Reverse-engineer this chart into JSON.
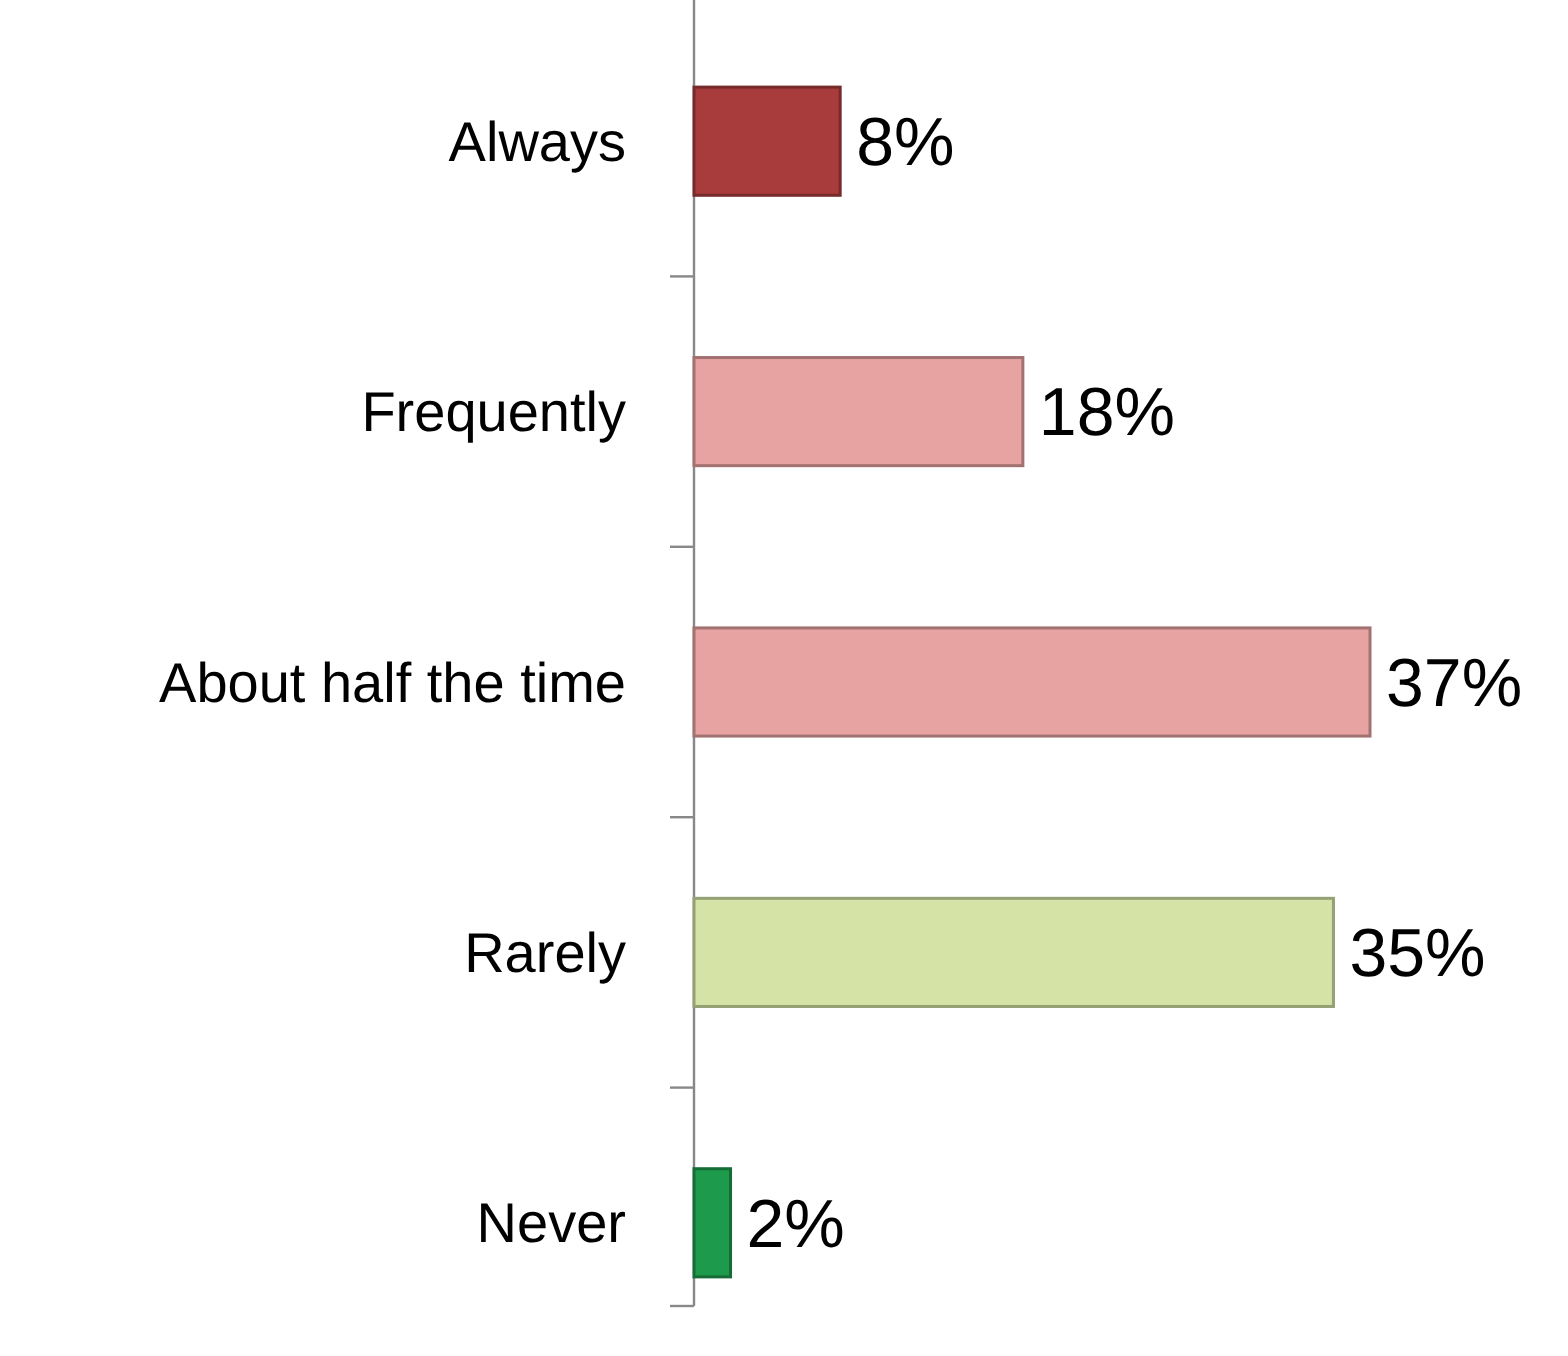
{
  "chart_data": {
    "type": "bar",
    "orientation": "horizontal",
    "categories": [
      "Always",
      "Frequently",
      "About half the time",
      "Rarely",
      "Never"
    ],
    "values": [
      8,
      18,
      37,
      35,
      2
    ],
    "colors": [
      "#a83c3c",
      "#e6a3a1",
      "#e6a3a1",
      "#d5e4a6",
      "#1e9a4c"
    ],
    "data_labels": true,
    "value_labels": [
      "8%",
      "18%",
      "37%",
      "35%",
      "2%"
    ]
  }
}
